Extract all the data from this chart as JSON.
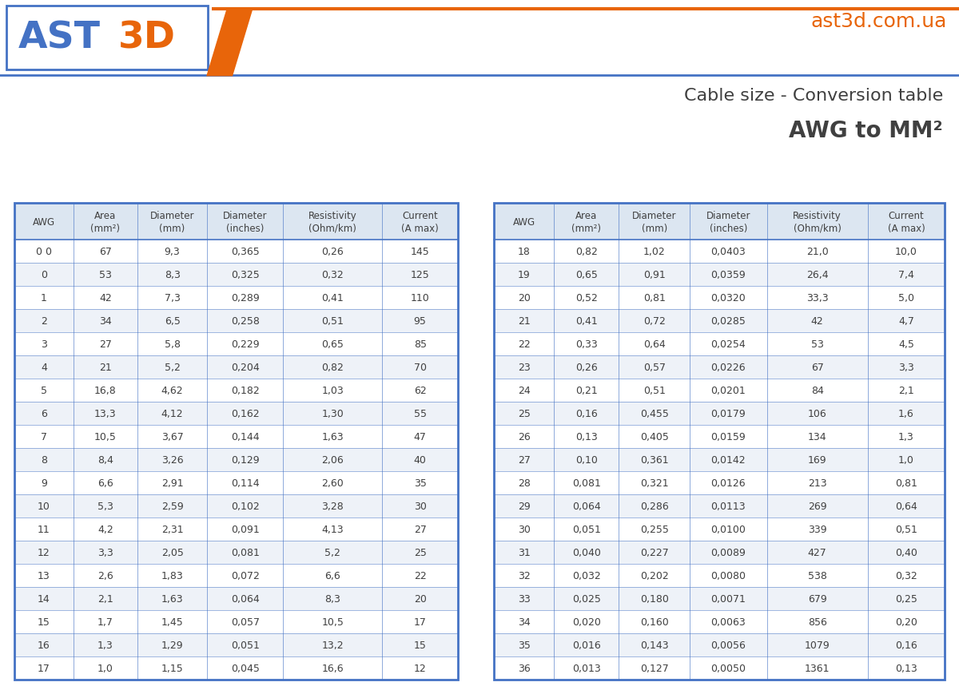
{
  "title_line1": "Cable size - Conversion table",
  "title_line2": "AWG to MM²",
  "website": "ast3d.com.ua",
  "bg_color": "#f0f0f0",
  "header_bg": "#dce6f1",
  "row_bg_even": "#ffffff",
  "row_bg_odd": "#eef2f8",
  "border_color": "#4472c4",
  "orange_color": "#e8650a",
  "blue_color": "#4472c4",
  "text_color": "#404040",
  "left_headers": [
    "AWG",
    "Area\n(mm²)",
    "Diameter\n(mm)",
    "Diameter\n(inches)",
    "Resistivity\n(Ohm/km)",
    "Current\n(A max)"
  ],
  "right_headers": [
    "AWG",
    "Area\n(mm²)",
    "Diameter\n(mm)",
    "Diameter\n(inches)",
    "Resistivity\n(Ohm/km)",
    "Current\n(A max)"
  ],
  "left_data": [
    [
      "0 0",
      "67",
      "9,3",
      "0,365",
      "0,26",
      "145"
    ],
    [
      "0",
      "53",
      "8,3",
      "0,325",
      "0,32",
      "125"
    ],
    [
      "1",
      "42",
      "7,3",
      "0,289",
      "0,41",
      "110"
    ],
    [
      "2",
      "34",
      "6,5",
      "0,258",
      "0,51",
      "95"
    ],
    [
      "3",
      "27",
      "5,8",
      "0,229",
      "0,65",
      "85"
    ],
    [
      "4",
      "21",
      "5,2",
      "0,204",
      "0,82",
      "70"
    ],
    [
      "5",
      "16,8",
      "4,62",
      "0,182",
      "1,03",
      "62"
    ],
    [
      "6",
      "13,3",
      "4,12",
      "0,162",
      "1,30",
      "55"
    ],
    [
      "7",
      "10,5",
      "3,67",
      "0,144",
      "1,63",
      "47"
    ],
    [
      "8",
      "8,4",
      "3,26",
      "0,129",
      "2,06",
      "40"
    ],
    [
      "9",
      "6,6",
      "2,91",
      "0,114",
      "2,60",
      "35"
    ],
    [
      "10",
      "5,3",
      "2,59",
      "0,102",
      "3,28",
      "30"
    ],
    [
      "11",
      "4,2",
      "2,31",
      "0,091",
      "4,13",
      "27"
    ],
    [
      "12",
      "3,3",
      "2,05",
      "0,081",
      "5,2",
      "25"
    ],
    [
      "13",
      "2,6",
      "1,83",
      "0,072",
      "6,6",
      "22"
    ],
    [
      "14",
      "2,1",
      "1,63",
      "0,064",
      "8,3",
      "20"
    ],
    [
      "15",
      "1,7",
      "1,45",
      "0,057",
      "10,5",
      "17"
    ],
    [
      "16",
      "1,3",
      "1,29",
      "0,051",
      "13,2",
      "15"
    ],
    [
      "17",
      "1,0",
      "1,15",
      "0,045",
      "16,6",
      "12"
    ]
  ],
  "right_data": [
    [
      "18",
      "0,82",
      "1,02",
      "0,0403",
      "21,0",
      "10,0"
    ],
    [
      "19",
      "0,65",
      "0,91",
      "0,0359",
      "26,4",
      "7,4"
    ],
    [
      "20",
      "0,52",
      "0,81",
      "0,0320",
      "33,3",
      "5,0"
    ],
    [
      "21",
      "0,41",
      "0,72",
      "0,0285",
      "42",
      "4,7"
    ],
    [
      "22",
      "0,33",
      "0,64",
      "0,0254",
      "53",
      "4,5"
    ],
    [
      "23",
      "0,26",
      "0,57",
      "0,0226",
      "67",
      "3,3"
    ],
    [
      "24",
      "0,21",
      "0,51",
      "0,0201",
      "84",
      "2,1"
    ],
    [
      "25",
      "0,16",
      "0,455",
      "0,0179",
      "106",
      "1,6"
    ],
    [
      "26",
      "0,13",
      "0,405",
      "0,0159",
      "134",
      "1,3"
    ],
    [
      "27",
      "0,10",
      "0,361",
      "0,0142",
      "169",
      "1,0"
    ],
    [
      "28",
      "0,081",
      "0,321",
      "0,0126",
      "213",
      "0,81"
    ],
    [
      "29",
      "0,064",
      "0,286",
      "0,0113",
      "269",
      "0,64"
    ],
    [
      "30",
      "0,051",
      "0,255",
      "0,0100",
      "339",
      "0,51"
    ],
    [
      "31",
      "0,040",
      "0,227",
      "0,0089",
      "427",
      "0,40"
    ],
    [
      "32",
      "0,032",
      "0,202",
      "0,0080",
      "538",
      "0,32"
    ],
    [
      "33",
      "0,025",
      "0,180",
      "0,0071",
      "679",
      "0,25"
    ],
    [
      "34",
      "0,020",
      "0,160",
      "0,0063",
      "856",
      "0,20"
    ],
    [
      "35",
      "0,016",
      "0,143",
      "0,0056",
      "1079",
      "0,16"
    ],
    [
      "36",
      "0,013",
      "0,127",
      "0,0050",
      "1361",
      "0,13"
    ]
  ]
}
